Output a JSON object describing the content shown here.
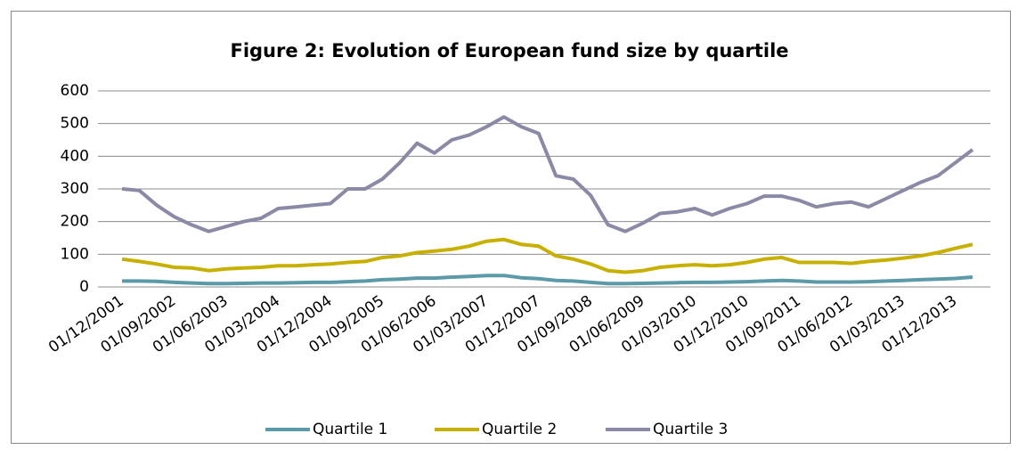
{
  "chart_data": {
    "type": "line",
    "title": "Figure 2: Evolution of European fund size by quartile",
    "categories": [
      "01/12/2001",
      null,
      null,
      "01/09/2002",
      null,
      null,
      "01/06/2003",
      null,
      null,
      "01/03/2004",
      null,
      null,
      "01/12/2004",
      null,
      null,
      "01/09/2005",
      null,
      null,
      "01/06/2006",
      null,
      null,
      "01/03/2007",
      null,
      null,
      "01/12/2007",
      null,
      null,
      "01/09/2008",
      null,
      null,
      "01/06/2009",
      null,
      null,
      "01/03/2010",
      null,
      null,
      "01/12/2010",
      null,
      null,
      "01/09/2011",
      null,
      null,
      "01/06/2012",
      null,
      null,
      "01/03/2013",
      null,
      null,
      "01/12/2013",
      null
    ],
    "series": [
      {
        "name": "Quartile 1",
        "color": "#5b9aa9",
        "values": [
          18,
          18,
          17,
          14,
          12,
          10,
          10,
          11,
          12,
          12,
          13,
          14,
          14,
          16,
          18,
          22,
          24,
          27,
          27,
          30,
          32,
          35,
          35,
          28,
          25,
          20,
          18,
          14,
          10,
          10,
          11,
          12,
          13,
          14,
          14,
          15,
          16,
          18,
          20,
          18,
          15,
          15,
          15,
          16,
          18,
          20,
          22,
          24,
          26,
          30
        ]
      },
      {
        "name": "Quartile 2",
        "color": "#c8b000",
        "values": [
          85,
          78,
          70,
          60,
          58,
          50,
          55,
          58,
          60,
          65,
          65,
          68,
          70,
          75,
          78,
          90,
          95,
          105,
          110,
          115,
          125,
          140,
          145,
          130,
          125,
          95,
          85,
          70,
          50,
          45,
          50,
          60,
          65,
          68,
          65,
          68,
          75,
          85,
          90,
          75,
          75,
          75,
          72,
          78,
          82,
          88,
          95,
          105,
          118,
          130
        ]
      },
      {
        "name": "Quartile 3",
        "color": "#8b8aa6",
        "values": [
          300,
          295,
          250,
          215,
          190,
          170,
          185,
          200,
          210,
          240,
          245,
          250,
          255,
          300,
          300,
          330,
          380,
          440,
          410,
          450,
          465,
          490,
          520,
          490,
          470,
          340,
          330,
          280,
          190,
          170,
          195,
          225,
          230,
          240,
          220,
          240,
          255,
          278,
          278,
          265,
          245,
          255,
          260,
          245,
          270,
          295,
          320,
          340,
          380,
          420
        ]
      }
    ],
    "ylim": [
      0,
      600
    ],
    "yticks": [
      0,
      100,
      200,
      300,
      400,
      500,
      600
    ],
    "grid": true,
    "legend": "bottom"
  }
}
